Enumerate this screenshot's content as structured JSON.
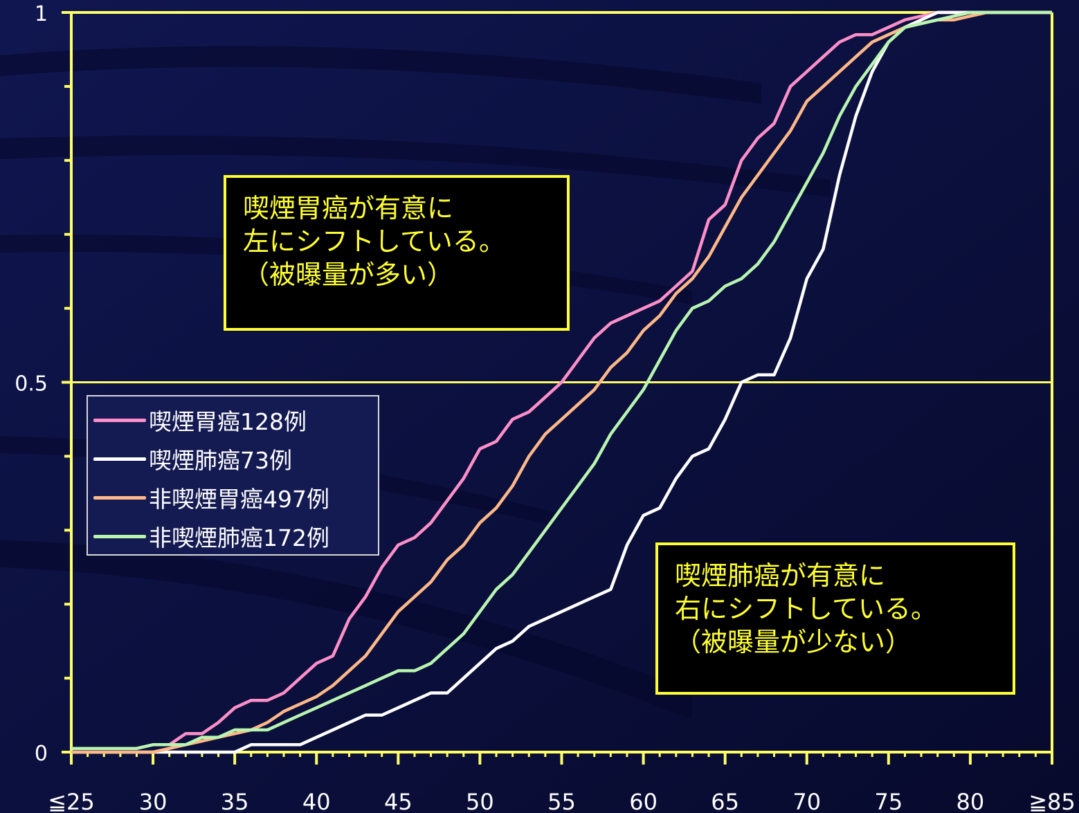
{
  "chart_data": {
    "type": "line",
    "x_tick_labels": [
      "≦25",
      "30",
      "35",
      "40",
      "45",
      "50",
      "55",
      "60",
      "65",
      "70",
      "75",
      "80",
      "≧85"
    ],
    "x_tick_values": [
      25,
      30,
      35,
      40,
      45,
      50,
      55,
      60,
      65,
      70,
      75,
      80,
      85
    ],
    "y_tick_labels": [
      "0",
      "0.5",
      "1"
    ],
    "y_tick_values": [
      0,
      0.5,
      1
    ],
    "xlim": [
      25,
      85
    ],
    "ylim": [
      0,
      1
    ],
    "y_minor_ticks": [
      0.1,
      0.2,
      0.3,
      0.4,
      0.6,
      0.7,
      0.8,
      0.9
    ],
    "reference_line": 0.5,
    "series": [
      {
        "name": "喫煙胃癌128例",
        "color": "#ff8fc8",
        "points": [
          [
            25,
            0.005
          ],
          [
            29,
            0.005
          ],
          [
            30,
            0.01
          ],
          [
            31,
            0.01
          ],
          [
            32,
            0.025
          ],
          [
            33,
            0.025
          ],
          [
            34,
            0.04
          ],
          [
            35,
            0.06
          ],
          [
            36,
            0.07
          ],
          [
            37,
            0.07
          ],
          [
            38,
            0.08
          ],
          [
            39,
            0.1
          ],
          [
            40,
            0.12
          ],
          [
            41,
            0.13
          ],
          [
            42,
            0.18
          ],
          [
            43,
            0.21
          ],
          [
            44,
            0.25
          ],
          [
            45,
            0.28
          ],
          [
            46,
            0.29
          ],
          [
            47,
            0.31
          ],
          [
            48,
            0.34
          ],
          [
            49,
            0.37
          ],
          [
            50,
            0.41
          ],
          [
            51,
            0.42
          ],
          [
            52,
            0.45
          ],
          [
            53,
            0.46
          ],
          [
            54,
            0.48
          ],
          [
            55,
            0.5
          ],
          [
            56,
            0.53
          ],
          [
            57,
            0.56
          ],
          [
            58,
            0.58
          ],
          [
            59,
            0.59
          ],
          [
            60,
            0.6
          ],
          [
            61,
            0.61
          ],
          [
            62,
            0.63
          ],
          [
            63,
            0.65
          ],
          [
            64,
            0.72
          ],
          [
            65,
            0.74
          ],
          [
            66,
            0.8
          ],
          [
            67,
            0.83
          ],
          [
            68,
            0.85
          ],
          [
            69,
            0.9
          ],
          [
            70,
            0.92
          ],
          [
            71,
            0.94
          ],
          [
            72,
            0.96
          ],
          [
            73,
            0.97
          ],
          [
            74,
            0.97
          ],
          [
            75,
            0.98
          ],
          [
            76,
            0.99
          ],
          [
            77,
            0.995
          ],
          [
            78,
            1
          ],
          [
            84,
            1
          ],
          [
            85,
            1
          ]
        ]
      },
      {
        "name": "喫煙肺癌73例",
        "color": "#ffffff",
        "points": [
          [
            25,
            0
          ],
          [
            35,
            0
          ],
          [
            36,
            0.01
          ],
          [
            39,
            0.01
          ],
          [
            40,
            0.02
          ],
          [
            41,
            0.03
          ],
          [
            42,
            0.04
          ],
          [
            43,
            0.05
          ],
          [
            44,
            0.05
          ],
          [
            45,
            0.06
          ],
          [
            46,
            0.07
          ],
          [
            47,
            0.08
          ],
          [
            48,
            0.08
          ],
          [
            49,
            0.1
          ],
          [
            50,
            0.12
          ],
          [
            51,
            0.14
          ],
          [
            52,
            0.15
          ],
          [
            53,
            0.17
          ],
          [
            54,
            0.18
          ],
          [
            55,
            0.19
          ],
          [
            56,
            0.2
          ],
          [
            57,
            0.21
          ],
          [
            58,
            0.22
          ],
          [
            59,
            0.28
          ],
          [
            60,
            0.32
          ],
          [
            61,
            0.33
          ],
          [
            62,
            0.37
          ],
          [
            63,
            0.4
          ],
          [
            64,
            0.41
          ],
          [
            65,
            0.45
          ],
          [
            66,
            0.5
          ],
          [
            67,
            0.51
          ],
          [
            68,
            0.51
          ],
          [
            69,
            0.56
          ],
          [
            70,
            0.64
          ],
          [
            71,
            0.68
          ],
          [
            72,
            0.78
          ],
          [
            73,
            0.86
          ],
          [
            74,
            0.92
          ],
          [
            75,
            0.96
          ],
          [
            76,
            0.98
          ],
          [
            77,
            0.99
          ],
          [
            78,
            1
          ],
          [
            85,
            1
          ]
        ]
      },
      {
        "name": "非喫煙胃癌497例",
        "color": "#ffb888",
        "points": [
          [
            25,
            0
          ],
          [
            30,
            0
          ],
          [
            31,
            0.005
          ],
          [
            32,
            0.01
          ],
          [
            33,
            0.015
          ],
          [
            34,
            0.02
          ],
          [
            35,
            0.025
          ],
          [
            36,
            0.03
          ],
          [
            37,
            0.04
          ],
          [
            38,
            0.055
          ],
          [
            39,
            0.065
          ],
          [
            40,
            0.075
          ],
          [
            41,
            0.09
          ],
          [
            42,
            0.11
          ],
          [
            43,
            0.13
          ],
          [
            44,
            0.16
          ],
          [
            45,
            0.19
          ],
          [
            46,
            0.21
          ],
          [
            47,
            0.23
          ],
          [
            48,
            0.26
          ],
          [
            49,
            0.28
          ],
          [
            50,
            0.31
          ],
          [
            51,
            0.33
          ],
          [
            52,
            0.36
          ],
          [
            53,
            0.4
          ],
          [
            54,
            0.43
          ],
          [
            55,
            0.45
          ],
          [
            56,
            0.47
          ],
          [
            57,
            0.49
          ],
          [
            58,
            0.52
          ],
          [
            59,
            0.54
          ],
          [
            60,
            0.57
          ],
          [
            61,
            0.59
          ],
          [
            62,
            0.62
          ],
          [
            63,
            0.64
          ],
          [
            64,
            0.67
          ],
          [
            65,
            0.71
          ],
          [
            66,
            0.75
          ],
          [
            67,
            0.78
          ],
          [
            68,
            0.81
          ],
          [
            69,
            0.84
          ],
          [
            70,
            0.88
          ],
          [
            71,
            0.9
          ],
          [
            72,
            0.92
          ],
          [
            73,
            0.94
          ],
          [
            74,
            0.96
          ],
          [
            75,
            0.97
          ],
          [
            76,
            0.98
          ],
          [
            77,
            0.985
          ],
          [
            78,
            0.99
          ],
          [
            79,
            0.99
          ],
          [
            80,
            0.995
          ],
          [
            81,
            1
          ],
          [
            85,
            1
          ]
        ]
      },
      {
        "name": "非喫煙肺癌172例",
        "color": "#b8f5b0",
        "points": [
          [
            25,
            0.005
          ],
          [
            29,
            0.005
          ],
          [
            30,
            0.01
          ],
          [
            32,
            0.01
          ],
          [
            33,
            0.02
          ],
          [
            34,
            0.02
          ],
          [
            35,
            0.03
          ],
          [
            36,
            0.03
          ],
          [
            37,
            0.03
          ],
          [
            38,
            0.04
          ],
          [
            39,
            0.05
          ],
          [
            40,
            0.06
          ],
          [
            41,
            0.07
          ],
          [
            42,
            0.08
          ],
          [
            43,
            0.09
          ],
          [
            44,
            0.1
          ],
          [
            45,
            0.11
          ],
          [
            46,
            0.11
          ],
          [
            47,
            0.12
          ],
          [
            48,
            0.14
          ],
          [
            49,
            0.16
          ],
          [
            50,
            0.19
          ],
          [
            51,
            0.22
          ],
          [
            52,
            0.24
          ],
          [
            53,
            0.27
          ],
          [
            54,
            0.3
          ],
          [
            55,
            0.33
          ],
          [
            56,
            0.36
          ],
          [
            57,
            0.39
          ],
          [
            58,
            0.43
          ],
          [
            59,
            0.46
          ],
          [
            60,
            0.49
          ],
          [
            61,
            0.53
          ],
          [
            62,
            0.57
          ],
          [
            63,
            0.6
          ],
          [
            64,
            0.61
          ],
          [
            65,
            0.63
          ],
          [
            66,
            0.64
          ],
          [
            67,
            0.66
          ],
          [
            68,
            0.69
          ],
          [
            69,
            0.73
          ],
          [
            70,
            0.77
          ],
          [
            71,
            0.81
          ],
          [
            72,
            0.86
          ],
          [
            73,
            0.9
          ],
          [
            74,
            0.93
          ],
          [
            75,
            0.96
          ],
          [
            76,
            0.98
          ],
          [
            77,
            0.985
          ],
          [
            78,
            0.99
          ],
          [
            79,
            0.995
          ],
          [
            80,
            1
          ],
          [
            85,
            1
          ]
        ]
      }
    ]
  },
  "annotations": {
    "top": [
      "喫煙胃癌が有意に",
      "左にシフトしている。",
      "（被曝量が多い）"
    ],
    "bottom": [
      "喫煙肺癌が有意に",
      "右にシフトしている。",
      "（被曝量が少ない）"
    ]
  },
  "colors": {
    "background": "#0b0f3a",
    "axis": "#ffff66",
    "tick_label": "#ffffff",
    "annotation_text": "#ffff33",
    "annotation_border": "#ffff33"
  }
}
